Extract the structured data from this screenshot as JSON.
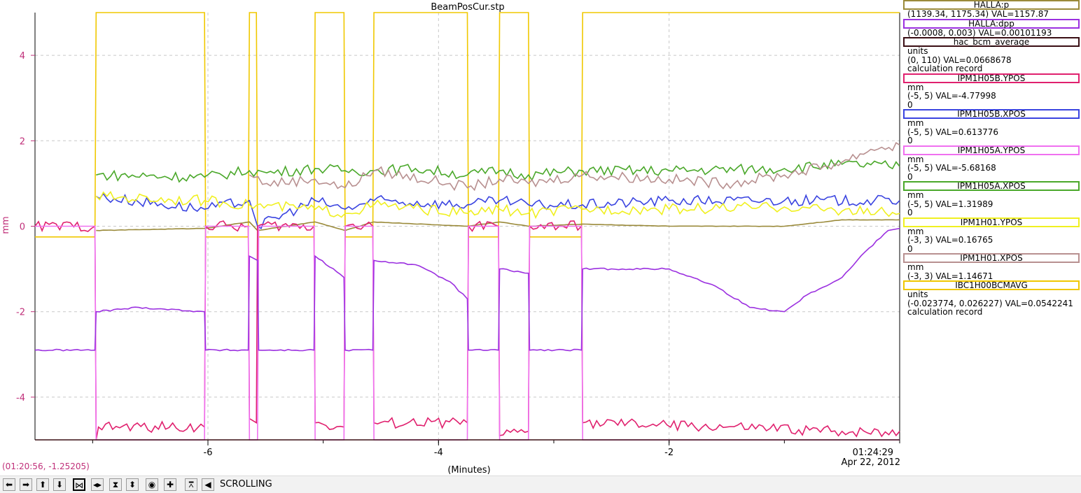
{
  "plot": {
    "title": "BeamPosCur.stp",
    "xlabel": "(Minutes)",
    "ylabel": "mm",
    "time_label": "01:24:29",
    "date_label": "Apr 22, 2012",
    "x_ticks": [
      "-6",
      "-4",
      "-2"
    ],
    "y_ticks": [
      "4",
      "2",
      "0",
      "-2",
      "-4"
    ],
    "cursor_readout": "(01:20:56, -1.25205)"
  },
  "legend": [
    {
      "name": "HALLA:p",
      "color": "#9a8a3a",
      "lines": [
        "(1139.34, 1175.34) VAL=1157.87"
      ]
    },
    {
      "name": "HALLA:dpp",
      "color": "#9b30e0",
      "lines": [
        "(-0.0008, 0.003) VAL=0.00101193"
      ]
    },
    {
      "name": "hac_bcm_average",
      "color": "#3a0e14",
      "lines": [
        "units",
        "(0, 110) VAL=0.0668678",
        "calculation record"
      ]
    },
    {
      "name": "IPM1H05B.YPOS",
      "color": "#e0206e",
      "lines": [
        "mm",
        "(-5, 5) VAL=-4.77998",
        "0"
      ]
    },
    {
      "name": "IPM1H05B.XPOS",
      "color": "#3a44e0",
      "lines": [
        "mm",
        "(-5, 5) VAL=0.613776",
        "0"
      ]
    },
    {
      "name": "IPM1H05A.YPOS",
      "color": "#f070f0",
      "lines": [
        "mm",
        "(-5, 5) VAL=-5.68168",
        "0"
      ]
    },
    {
      "name": "IPM1H05A.XPOS",
      "color": "#4aa82a",
      "lines": [
        "mm",
        "(-5, 5) VAL=1.31989",
        "0"
      ]
    },
    {
      "name": "IPM1H01.YPOS",
      "color": "#f0f020",
      "lines": [
        "mm",
        "(-3, 3) VAL=0.16765",
        "0"
      ]
    },
    {
      "name": "IPM1H01.XPOS",
      "color": "#b89090",
      "lines": [
        "mm",
        "(-3, 3) VAL=1.14671"
      ]
    },
    {
      "name": "IBC1H00BCMAVG",
      "color": "#f0c800",
      "lines": [
        "units",
        "(-0.023774, 0.026227) VAL=0.0542241",
        "calculation record"
      ]
    }
  ],
  "toolbar": {
    "status": "SCROLLING",
    "buttons": [
      "left-arrow-icon",
      "right-arrow-icon",
      "up-arrow-icon",
      "down-arrow-icon",
      "zoom-in-x-icon",
      "zoom-out-x-icon",
      "zoom-in-y-icon",
      "zoom-out-y-icon",
      "circle-icon",
      "plus-icon",
      "auto-scale-icon",
      "scroll-icon"
    ]
  },
  "chart_data": {
    "type": "line",
    "title": "BeamPosCur.stp",
    "xlabel": "(Minutes)",
    "ylabel": "mm",
    "xlim": [
      -7.5,
      0
    ],
    "ylim": [
      -5,
      5
    ],
    "grid": true,
    "series": [
      {
        "name": "IBC1H00BCMAVG",
        "color": "#f0c800",
        "points": [
          [
            -7.5,
            -0.25
          ],
          [
            -6.98,
            -0.25
          ],
          [
            -6.97,
            5
          ],
          [
            -6.03,
            5
          ],
          [
            -6.02,
            -0.25
          ],
          [
            -5.65,
            -0.25
          ],
          [
            -5.64,
            5
          ],
          [
            -5.58,
            5
          ],
          [
            -5.57,
            -0.25
          ],
          [
            -5.08,
            -0.25
          ],
          [
            -5.07,
            5
          ],
          [
            -4.82,
            5
          ],
          [
            -4.81,
            -0.25
          ],
          [
            -4.57,
            -0.25
          ],
          [
            -4.56,
            5
          ],
          [
            -3.75,
            5
          ],
          [
            -3.74,
            -0.25
          ],
          [
            -3.48,
            -0.25
          ],
          [
            -3.47,
            5
          ],
          [
            -3.22,
            5
          ],
          [
            -3.21,
            -0.25
          ],
          [
            -2.76,
            -0.25
          ],
          [
            -2.75,
            5
          ],
          [
            0,
            5
          ]
        ]
      },
      {
        "name": "IPM1H05A.XPOS",
        "color": "#4aa82a",
        "points": [
          [
            -6.97,
            1.2
          ],
          [
            -6.03,
            1.15
          ],
          [
            -5.64,
            1.3
          ],
          [
            -5.49,
            1.25
          ],
          [
            -5.07,
            1.35
          ],
          [
            -4.81,
            1.3
          ],
          [
            -4.56,
            1.3
          ],
          [
            -4.2,
            1.35
          ],
          [
            -3.75,
            1.2
          ],
          [
            -3.47,
            1.3
          ],
          [
            -3.22,
            1.2
          ],
          [
            -2.75,
            1.3
          ],
          [
            -2,
            1.3
          ],
          [
            -1,
            1.35
          ],
          [
            -0.5,
            1.45
          ],
          [
            0,
            1.4
          ]
        ]
      },
      {
        "name": "IPM1H01.XPOS",
        "color": "#b89090",
        "points": [
          [
            -5.64,
            1.2
          ],
          [
            -5.49,
            1.0
          ],
          [
            -5.07,
            1.1
          ],
          [
            -4.81,
            0.9
          ],
          [
            -4.56,
            1.3
          ],
          [
            -3.9,
            1.0
          ],
          [
            -3.75,
            0.9
          ],
          [
            -3.47,
            1.1
          ],
          [
            -3.22,
            1.0
          ],
          [
            -2.75,
            1.2
          ],
          [
            -2,
            1.1
          ],
          [
            -1.5,
            1.0
          ],
          [
            -1,
            1.2
          ],
          [
            -0.5,
            1.5
          ],
          [
            -0.25,
            1.8
          ],
          [
            0,
            1.9
          ]
        ]
      },
      {
        "name": "IPM1H05B.XPOS",
        "color": "#3a44e0",
        "points": [
          [
            -6.97,
            0.7
          ],
          [
            -6.03,
            0.4
          ],
          [
            -5.64,
            0.6
          ],
          [
            -5.57,
            0.0
          ],
          [
            -5.07,
            0.6
          ],
          [
            -4.81,
            0.4
          ],
          [
            -4.56,
            0.6
          ],
          [
            -3.75,
            0.5
          ],
          [
            -3.47,
            0.6
          ],
          [
            -3.22,
            0.5
          ],
          [
            -2.75,
            0.5
          ],
          [
            -2,
            0.6
          ],
          [
            -1,
            0.6
          ],
          [
            0,
            0.6
          ]
        ]
      },
      {
        "name": "IPM1H01.YPOS",
        "color": "#f0f020",
        "points": [
          [
            -6.97,
            0.7
          ],
          [
            -6.03,
            0.6
          ],
          [
            -5.64,
            0.5
          ],
          [
            -5.07,
            0.4
          ],
          [
            -4.81,
            0.3
          ],
          [
            -4.56,
            0.5
          ],
          [
            -3.75,
            0.3
          ],
          [
            -3.47,
            0.4
          ],
          [
            -3.22,
            0.3
          ],
          [
            -2.75,
            0.4
          ],
          [
            -2,
            0.4
          ],
          [
            -1,
            0.45
          ],
          [
            0,
            0.3
          ]
        ]
      },
      {
        "name": "HALLA:p",
        "color": "#9a8a3a",
        "points": [
          [
            -6.97,
            -0.1
          ],
          [
            -6.03,
            -0.05
          ],
          [
            -5.64,
            0.1
          ],
          [
            -5.57,
            -0.1
          ],
          [
            -5.07,
            0.1
          ],
          [
            -4.81,
            -0.1
          ],
          [
            -4.56,
            0.1
          ],
          [
            -3.75,
            0.0
          ],
          [
            -3.47,
            0.1
          ],
          [
            -3.22,
            0.0
          ],
          [
            -2.75,
            0.05
          ],
          [
            -2,
            0.0
          ],
          [
            -1.5,
            0.0
          ],
          [
            -1,
            0.0
          ],
          [
            -0.5,
            0.15
          ],
          [
            0,
            0.15
          ]
        ]
      },
      {
        "name": "IPM1H05B.YPOS",
        "color": "#e0206e",
        "points": [
          [
            -7.5,
            0
          ],
          [
            -6.98,
            0
          ],
          [
            -6.97,
            -5
          ],
          [
            -6.95,
            -4.7
          ],
          [
            -6.03,
            -4.7
          ],
          [
            -6.02,
            0
          ],
          [
            -5.65,
            0
          ],
          [
            -5.64,
            -4.5
          ],
          [
            -5.58,
            -4.6
          ],
          [
            -5.57,
            0
          ],
          [
            -5.08,
            0
          ],
          [
            -5.07,
            -4.6
          ],
          [
            -4.82,
            -4.7
          ],
          [
            -4.81,
            0
          ],
          [
            -4.57,
            0
          ],
          [
            -4.56,
            -4.6
          ],
          [
            -3.75,
            -4.6
          ],
          [
            -3.74,
            0
          ],
          [
            -3.48,
            0
          ],
          [
            -3.47,
            -4.9
          ],
          [
            -3.22,
            -4.8
          ],
          [
            -3.21,
            0
          ],
          [
            -2.76,
            0
          ],
          [
            -2.75,
            -4.6
          ],
          [
            -1.5,
            -4.7
          ],
          [
            -0.5,
            -4.8
          ],
          [
            0,
            -4.8
          ]
        ]
      },
      {
        "name": "IPM1H05A.YPOS",
        "color": "#f070f0",
        "points": [
          [
            -7.5,
            0
          ],
          [
            -6.98,
            0
          ],
          [
            -6.97,
            -5
          ],
          [
            -6.03,
            -5
          ],
          [
            -6.02,
            0
          ],
          [
            -5.65,
            0
          ],
          [
            -5.64,
            -5
          ],
          [
            -5.57,
            -5
          ],
          [
            -5.56,
            0
          ],
          [
            -5.08,
            0
          ],
          [
            -5.07,
            -5
          ],
          [
            -4.82,
            -5
          ],
          [
            -4.81,
            0
          ],
          [
            -4.57,
            0
          ],
          [
            -4.56,
            -5
          ],
          [
            -3.75,
            -5
          ],
          [
            -3.74,
            0
          ],
          [
            -3.48,
            0
          ],
          [
            -3.47,
            -5
          ],
          [
            -3.22,
            -5
          ],
          [
            -3.21,
            0
          ],
          [
            -2.76,
            0
          ],
          [
            -2.75,
            -5
          ],
          [
            0,
            -5
          ]
        ]
      },
      {
        "name": "HALLA:dpp",
        "color": "#9b30e0",
        "points": [
          [
            -7.5,
            -2.9
          ],
          [
            -6.98,
            -2.9
          ],
          [
            -6.97,
            -2.0
          ],
          [
            -6.6,
            -1.9
          ],
          [
            -6.03,
            -2.0
          ],
          [
            -6.02,
            -2.9
          ],
          [
            -5.65,
            -2.9
          ],
          [
            -5.64,
            -0.7
          ],
          [
            -5.57,
            -0.8
          ],
          [
            -5.56,
            -2.9
          ],
          [
            -5.08,
            -2.9
          ],
          [
            -5.07,
            -0.7
          ],
          [
            -4.82,
            -1.2
          ],
          [
            -4.81,
            -2.9
          ],
          [
            -4.57,
            -2.9
          ],
          [
            -4.56,
            -0.8
          ],
          [
            -4.2,
            -0.9
          ],
          [
            -3.9,
            -1.3
          ],
          [
            -3.75,
            -1.7
          ],
          [
            -3.74,
            -2.9
          ],
          [
            -3.48,
            -2.9
          ],
          [
            -3.47,
            -1.0
          ],
          [
            -3.22,
            -1.1
          ],
          [
            -3.21,
            -2.9
          ],
          [
            -2.76,
            -2.9
          ],
          [
            -2.75,
            -1.0
          ],
          [
            -2.0,
            -1.0
          ],
          [
            -1.6,
            -1.4
          ],
          [
            -1.3,
            -1.9
          ],
          [
            -1.0,
            -2.0
          ],
          [
            -0.8,
            -1.6
          ],
          [
            -0.5,
            -1.2
          ],
          [
            -0.3,
            -0.6
          ],
          [
            -0.1,
            -0.1
          ],
          [
            0,
            -0.05
          ]
        ]
      },
      {
        "name": "hac_bcm_average",
        "color": "#3a0e14",
        "points": [
          [
            -7.5,
            -5
          ],
          [
            0,
            -5
          ]
        ]
      }
    ]
  }
}
